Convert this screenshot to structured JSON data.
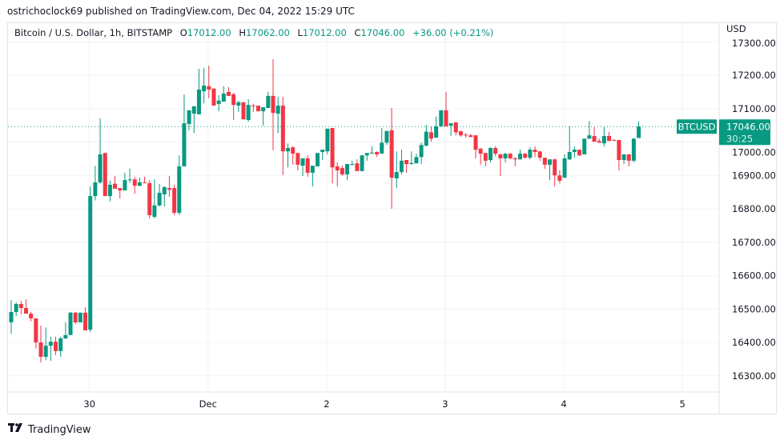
{
  "header": {
    "published": "ostrichoclock69 published on TradingView.com, Dec 04, 2022 15:29 UTC"
  },
  "legend": {
    "symbol": "Bitcoin / U.S. Dollar, 1h, BITSTAMP",
    "o_label": "O",
    "o": "17012.00",
    "h_label": "H",
    "h": "17062.00",
    "l_label": "L",
    "l": "17012.00",
    "c_label": "C",
    "c": "17046.00",
    "change": "+36.00 (+0.21%)"
  },
  "axis": {
    "currency": "USD"
  },
  "tags": {
    "symbol": "BTCUSD",
    "price": "17046.00",
    "countdown": "30:25"
  },
  "footer": {
    "brand": "TradingView"
  },
  "colors": {
    "up": "#089981",
    "down": "#f23645",
    "grid": "#f0f3fa"
  },
  "chart_data": {
    "type": "candlestick",
    "title": "Bitcoin / U.S. Dollar, 1h, BITSTAMP",
    "ylabel": "USD",
    "ylim": [
      16200,
      17320
    ],
    "yticks": [
      16300,
      16400,
      16500,
      16600,
      16700,
      16800,
      16900,
      17000,
      17100,
      17200,
      17300
    ],
    "ytick_labels": [
      "16300.00",
      "16400.00",
      "16500.00",
      "16600.00",
      "16700.00",
      "16800.00",
      "16900.00",
      "17000.00",
      "17100.00",
      "17200.00",
      "17300.00"
    ],
    "xticks": [
      {
        "index": 16,
        "label": "30"
      },
      {
        "index": 40,
        "label": "Dec"
      },
      {
        "index": 64,
        "label": "2"
      },
      {
        "index": 88,
        "label": "3"
      },
      {
        "index": 112,
        "label": "4"
      },
      {
        "index": 136,
        "label": "5"
      }
    ],
    "last_price": 17046,
    "ohlc": [
      [
        16460,
        16527,
        16426,
        16491
      ],
      [
        16491,
        16520,
        16479,
        16515
      ],
      [
        16515,
        16525,
        16484,
        16503
      ],
      [
        16503,
        16529,
        16486,
        16486
      ],
      [
        16486,
        16492,
        16463,
        16472
      ],
      [
        16472,
        16472,
        16382,
        16400
      ],
      [
        16400,
        16450,
        16340,
        16357
      ],
      [
        16357,
        16445,
        16347,
        16390
      ],
      [
        16390,
        16417,
        16345,
        16402
      ],
      [
        16402,
        16417,
        16362,
        16374
      ],
      [
        16374,
        16417,
        16357,
        16412
      ],
      [
        16412,
        16460,
        16410,
        16422
      ],
      [
        16422,
        16491,
        16422,
        16489
      ],
      [
        16489,
        16491,
        16455,
        16460
      ],
      [
        16460,
        16489,
        16460,
        16489
      ],
      [
        16489,
        16505,
        16436,
        16436
      ],
      [
        16438,
        16867,
        16431,
        16838
      ],
      [
        16838,
        16929,
        16825,
        16879
      ],
      [
        16879,
        17071,
        16875,
        16963
      ],
      [
        16967,
        16967,
        16838,
        16838
      ],
      [
        16838,
        16884,
        16822,
        16872
      ],
      [
        16875,
        16898,
        16860,
        16860
      ],
      [
        16862,
        16862,
        16831,
        16855
      ],
      [
        16855,
        16908,
        16855,
        16886
      ],
      [
        16886,
        16920,
        16877,
        16888
      ],
      [
        16888,
        16896,
        16845,
        16869
      ],
      [
        16869,
        16893,
        16867,
        16879
      ],
      [
        16879,
        16896,
        16877,
        16877
      ],
      [
        16877,
        16886,
        16771,
        16781
      ],
      [
        16776,
        16888,
        16771,
        16810
      ],
      [
        16810,
        16874,
        16807,
        16848
      ],
      [
        16843,
        16867,
        16807,
        16865
      ],
      [
        16862,
        16898,
        16836,
        16857
      ],
      [
        16862,
        16872,
        16781,
        16788
      ],
      [
        16788,
        16960,
        16781,
        16927
      ],
      [
        16927,
        17142,
        16927,
        17056
      ],
      [
        17054,
        17095,
        17035,
        17095
      ],
      [
        17085,
        17107,
        17027,
        17107
      ],
      [
        17083,
        17219,
        17083,
        17157
      ],
      [
        17152,
        17222,
        17116,
        17169
      ],
      [
        17167,
        17229,
        17131,
        17157
      ],
      [
        17160,
        17160,
        17109,
        17109
      ],
      [
        17114,
        17140,
        17092,
        17124
      ],
      [
        17121,
        17167,
        17121,
        17145
      ],
      [
        17150,
        17164,
        17138,
        17138
      ],
      [
        17143,
        17147,
        17066,
        17111
      ],
      [
        17109,
        17124,
        17090,
        17119
      ],
      [
        17119,
        17119,
        17068,
        17068
      ],
      [
        17066,
        17128,
        17061,
        17111
      ],
      [
        17109,
        17114,
        17090,
        17107
      ],
      [
        17109,
        17109,
        17092,
        17092
      ],
      [
        17092,
        17104,
        17049,
        17104
      ],
      [
        17102,
        17150,
        17102,
        17138
      ],
      [
        17138,
        17248,
        16975,
        17087
      ],
      [
        17085,
        17135,
        17027,
        17109
      ],
      [
        17109,
        17135,
        16901,
        16972
      ],
      [
        16972,
        16996,
        16924,
        16982
      ],
      [
        16984,
        16987,
        16932,
        16965
      ],
      [
        16967,
        16967,
        16915,
        16932
      ],
      [
        16929,
        16951,
        16898,
        16951
      ],
      [
        16951,
        16960,
        16896,
        16908
      ],
      [
        16908,
        16929,
        16867,
        16929
      ],
      [
        16927,
        16967,
        16927,
        16967
      ],
      [
        16970,
        16977,
        16946,
        16977
      ],
      [
        16972,
        17040,
        16963,
        17040
      ],
      [
        17042,
        17042,
        16876,
        16924
      ],
      [
        16927,
        16939,
        16867,
        16915
      ],
      [
        16922,
        16929,
        16898,
        16903
      ],
      [
        16903,
        16934,
        16886,
        16934
      ],
      [
        16932,
        16944,
        16930,
        16934
      ],
      [
        16936,
        16948,
        16913,
        16913
      ],
      [
        16913,
        16960,
        16913,
        16960
      ],
      [
        16960,
        16967,
        16944,
        16967
      ],
      [
        16967,
        16987,
        16964,
        16968
      ],
      [
        16970,
        16972,
        16955,
        16963
      ],
      [
        16965,
        17042,
        16965,
        16998
      ],
      [
        16998,
        17033,
        16991,
        17033
      ],
      [
        17035,
        17102,
        16800,
        16893
      ],
      [
        16891,
        16972,
        16862,
        16910
      ],
      [
        16910,
        16977,
        16903,
        16944
      ],
      [
        16946,
        16946,
        16908,
        16934
      ],
      [
        16934,
        16972,
        16932,
        16937
      ],
      [
        16936,
        16965,
        16936,
        16955
      ],
      [
        16955,
        16998,
        16934,
        16991
      ],
      [
        16989,
        17051,
        16987,
        17031
      ],
      [
        17029,
        17047,
        17001,
        17010
      ],
      [
        17013,
        17076,
        17013,
        17047
      ],
      [
        17047,
        17095,
        17047,
        17095
      ],
      [
        17095,
        17150,
        17047,
        17047
      ],
      [
        17049,
        17056,
        17018,
        17056
      ],
      [
        17059,
        17059,
        17020,
        17029
      ],
      [
        17032,
        17034,
        17016,
        17020
      ],
      [
        17022,
        17027,
        17013,
        17020
      ],
      [
        17020,
        17024,
        17015,
        17015
      ],
      [
        17020,
        17020,
        16951,
        16977
      ],
      [
        16980,
        16982,
        16932,
        16965
      ],
      [
        16967,
        16967,
        16927,
        16944
      ],
      [
        16946,
        16984,
        16939,
        16982
      ],
      [
        16982,
        16987,
        16958,
        16965
      ],
      [
        16963,
        16965,
        16898,
        16951
      ],
      [
        16951,
        16967,
        16939,
        16965
      ],
      [
        16965,
        16967,
        16948,
        16951
      ],
      [
        16951,
        16955,
        16927,
        16948
      ],
      [
        16948,
        16977,
        16948,
        16965
      ],
      [
        16965,
        16967,
        16950,
        16953
      ],
      [
        16953,
        16984,
        16948,
        16977
      ],
      [
        16977,
        16987,
        16955,
        16970
      ],
      [
        16972,
        16972,
        16944,
        16953
      ],
      [
        16953,
        16953,
        16920,
        16932
      ],
      [
        16932,
        16948,
        16886,
        16948
      ],
      [
        16948,
        16950,
        16867,
        16900
      ],
      [
        16900,
        16915,
        16876,
        16884
      ],
      [
        16893,
        16963,
        16893,
        16951
      ],
      [
        16948,
        17047,
        16946,
        16970
      ],
      [
        16970,
        16987,
        16953,
        16977
      ],
      [
        16977,
        16977,
        16958,
        16960
      ],
      [
        16963,
        17010,
        16963,
        17010
      ],
      [
        17010,
        17063,
        17010,
        17020
      ],
      [
        17018,
        17044,
        17001,
        17001
      ],
      [
        17003,
        17010,
        16998,
        16998
      ],
      [
        16996,
        17044,
        16987,
        17018
      ],
      [
        17018,
        17030,
        17003,
        17003
      ],
      [
        17006,
        17009,
        17003,
        17004
      ],
      [
        17006,
        17006,
        16915,
        16946
      ],
      [
        16946,
        16963,
        16934,
        16963
      ],
      [
        16963,
        16963,
        16927,
        16944
      ],
      [
        16944,
        17012,
        16939,
        17010
      ],
      [
        17012,
        17062,
        17012,
        17046
      ]
    ]
  }
}
